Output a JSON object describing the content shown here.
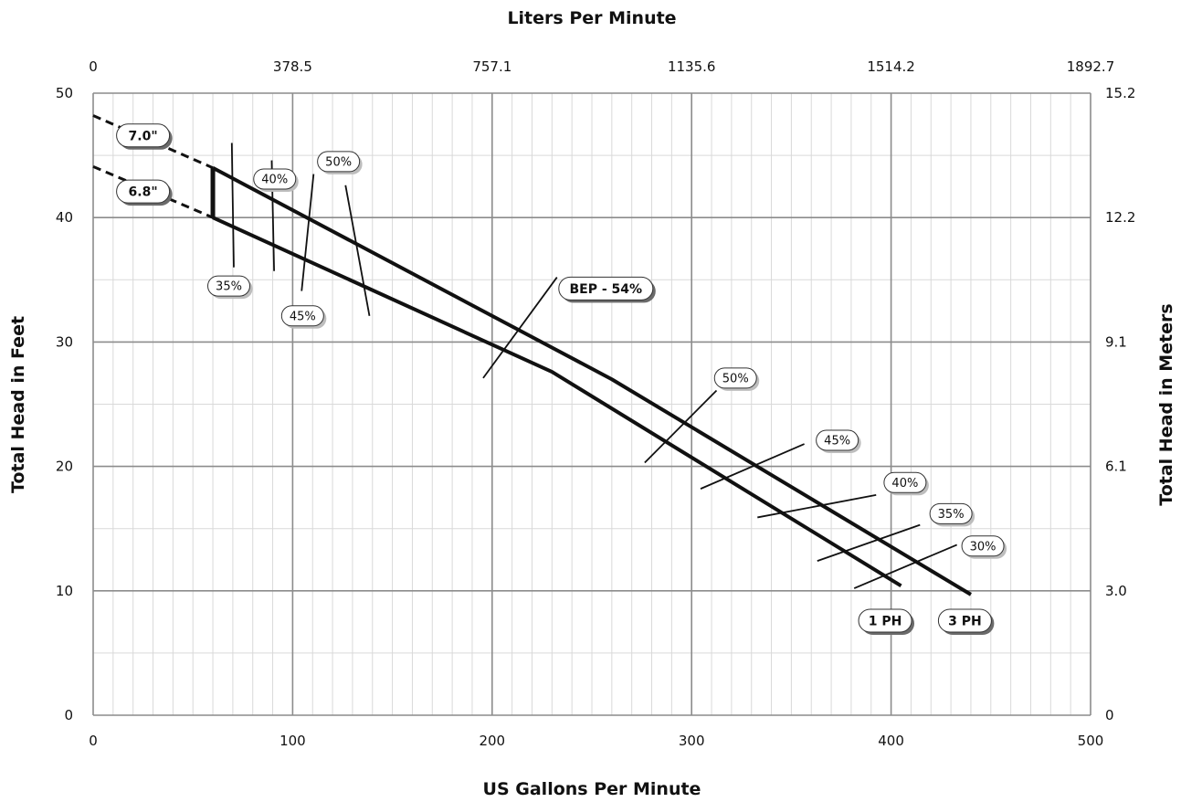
{
  "chart_data": {
    "type": "line",
    "title": "",
    "x_bottom": {
      "label": "US Gallons Per Minute",
      "range": [
        0,
        500
      ],
      "ticks": [
        "0",
        "100",
        "200",
        "300",
        "400",
        "500"
      ]
    },
    "x_top": {
      "label": "Liters Per Minute",
      "ticks": [
        "0",
        "378.5",
        "757.1",
        "1135.6",
        "1514.2",
        "1892.7"
      ]
    },
    "y_left": {
      "label": "Total Head in Feet",
      "range": [
        0,
        50
      ],
      "ticks": [
        "0",
        "10",
        "20",
        "30",
        "40",
        "50"
      ]
    },
    "y_right": {
      "label": "Total Head in Meters",
      "ticks": [
        "0",
        "3.0",
        "6.1",
        "9.1",
        "12.2",
        "15.2"
      ]
    },
    "grid": true,
    "series": [
      {
        "name": "7.0\"",
        "line_label": "3 PH",
        "points": [
          [
            60,
            44
          ],
          [
            260,
            27
          ],
          [
            440,
            9.7
          ]
        ],
        "extrapolated": [
          [
            0,
            48.2
          ],
          [
            60,
            44
          ]
        ]
      },
      {
        "name": "6.8\"",
        "line_label": "1 PH",
        "points": [
          [
            60,
            40
          ],
          [
            230,
            27.6
          ],
          [
            405,
            10.4
          ]
        ],
        "extrapolated": [
          [
            0,
            44.1
          ],
          [
            60,
            40
          ]
        ]
      }
    ],
    "efficiency_labels": [
      {
        "text": "35%",
        "line": [
          [
            69.5,
            46
          ],
          [
            70.5,
            36
          ]
        ],
        "label_at": [
          68,
          34.5
        ]
      },
      {
        "text": "40%",
        "line": [
          [
            89.5,
            44.6
          ],
          [
            90.7,
            35.7
          ]
        ],
        "label_at": [
          91,
          43.1
        ]
      },
      {
        "text": "45%",
        "line": [
          [
            110.5,
            43.5
          ],
          [
            104.5,
            34.1
          ]
        ],
        "label_at": [
          105,
          32.1
        ]
      },
      {
        "text": "50%",
        "line": [
          [
            126.5,
            42.6
          ],
          [
            138.5,
            32.1
          ]
        ],
        "label_at": [
          123,
          44.5
        ]
      },
      {
        "text": "BEP - 54%",
        "line": [
          [
            195.5,
            27.1
          ],
          [
            232.5,
            35.2
          ]
        ],
        "label_at": [
          257,
          34.3
        ]
      },
      {
        "text": "50%",
        "line": [
          [
            276.5,
            20.3
          ],
          [
            312.5,
            26.1
          ]
        ],
        "label_at": [
          322,
          27.1
        ]
      },
      {
        "text": "45%",
        "line": [
          [
            304.5,
            18.2
          ],
          [
            356.5,
            21.8
          ]
        ],
        "label_at": [
          373,
          22.1
        ]
      },
      {
        "text": "40%",
        "line": [
          [
            333,
            15.9
          ],
          [
            392.5,
            17.7
          ]
        ],
        "label_at": [
          407,
          18.7
        ]
      },
      {
        "text": "35%",
        "line": [
          [
            363,
            12.4
          ],
          [
            414.5,
            15.3
          ]
        ],
        "label_at": [
          430,
          16.2
        ]
      },
      {
        "text": "30%",
        "line": [
          [
            381.5,
            10.2
          ],
          [
            433,
            13.7
          ]
        ],
        "label_at": [
          446,
          13.6
        ]
      }
    ],
    "diameter_labels": [
      {
        "text": "7.0\"",
        "label_at": [
          25,
          46.6
        ]
      },
      {
        "text": "6.8\"",
        "label_at": [
          25,
          42.1
        ]
      }
    ],
    "phase_labels": [
      {
        "text": "1 PH",
        "label_at": [
          397,
          7.6
        ]
      },
      {
        "text": "3 PH",
        "label_at": [
          437,
          7.6
        ]
      }
    ]
  }
}
